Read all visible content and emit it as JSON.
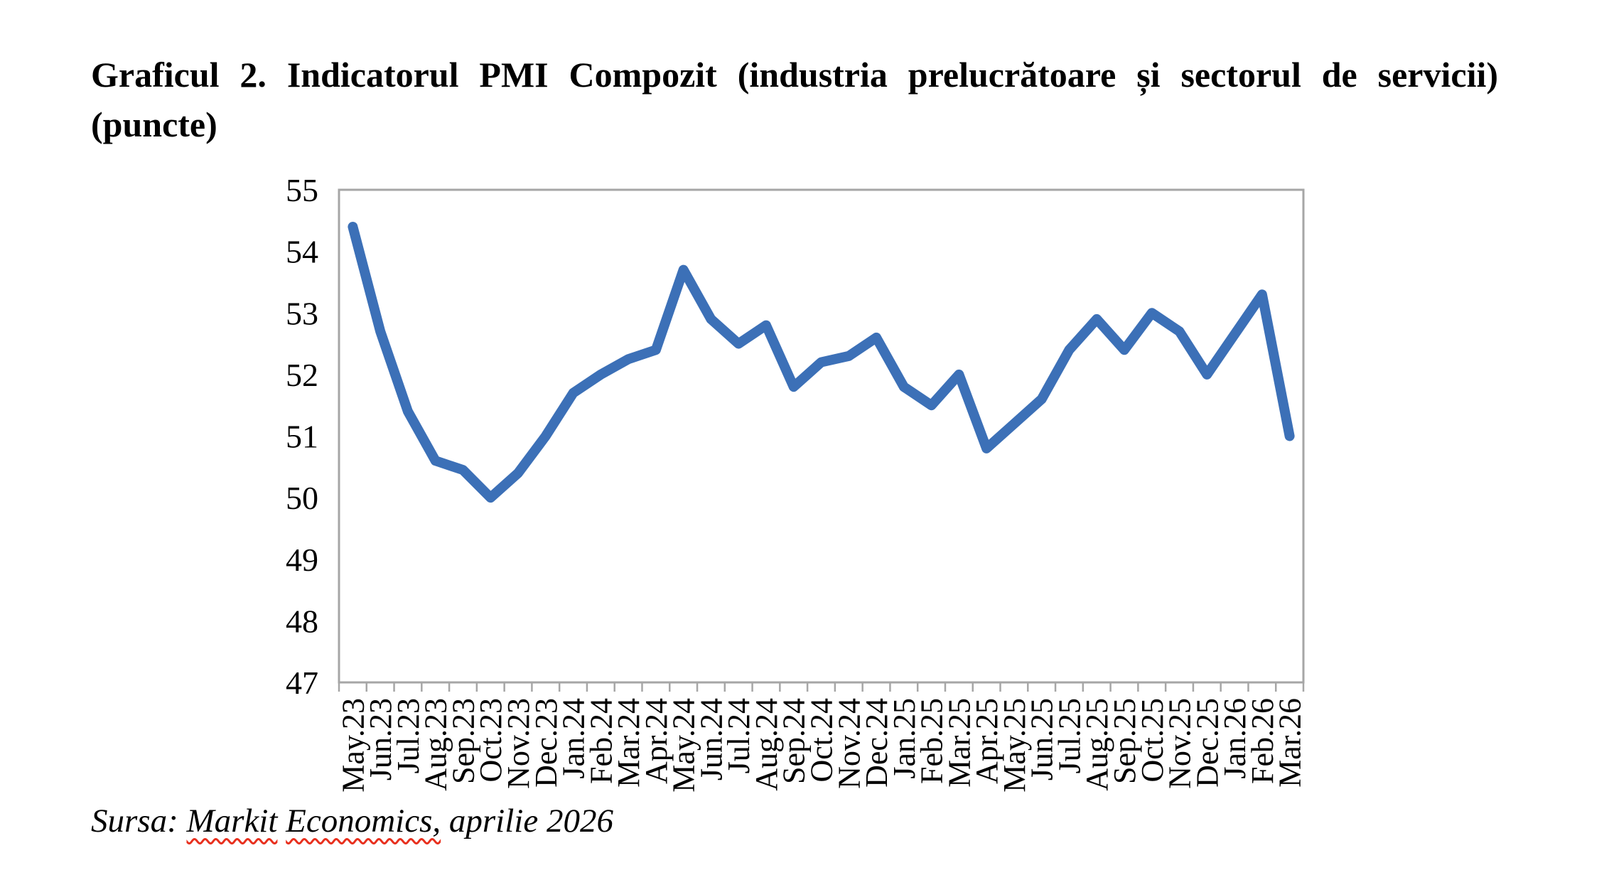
{
  "page": {
    "title_line1": "Graficul 2. Indicatorul PMI Compozit (industria prelucrătoare și sectorul de servicii)",
    "title_line2": "(puncte)"
  },
  "source": {
    "prefix": "Sursa: ",
    "underlined_word1": "Markit",
    "underlined_word2": "Economics,",
    "suffix": " aprilie 2026",
    "squiggle_color": "#e8301e"
  },
  "chart_data": {
    "type": "line",
    "title": "Graficul 2. Indicatorul PMI Compozit (industria prelucrătoare și sectorul de servicii) (puncte)",
    "categories": [
      "May.23",
      "Jun.23",
      "Jul.23",
      "Aug.23",
      "Sep.23",
      "Oct.23",
      "Nov.23",
      "Dec.23",
      "Jan.24",
      "Feb.24",
      "Mar.24",
      "Apr.24",
      "May.24",
      "Jun.24",
      "Jul.24",
      "Aug.24",
      "Sep.24",
      "Oct.24",
      "Nov.24",
      "Dec.24",
      "Jan.25",
      "Feb.25",
      "Mar.25",
      "Apr.25",
      "May.25",
      "Jun.25",
      "Jul.25",
      "Aug.25",
      "Sep.25",
      "Oct.25",
      "Nov.25",
      "Dec.25",
      "Jan.26",
      "Feb.26",
      "Mar.26"
    ],
    "series": [
      {
        "name": "PMI Compozit",
        "values": [
          54.4,
          52.7,
          51.4,
          50.6,
          50.45,
          50.0,
          50.4,
          51.0,
          51.7,
          52.0,
          52.25,
          52.4,
          53.7,
          52.9,
          52.5,
          52.8,
          51.8,
          52.2,
          52.3,
          52.6,
          51.8,
          51.5,
          52.0,
          50.8,
          51.2,
          51.6,
          52.4,
          52.9,
          52.4,
          53.0,
          52.7,
          52.0,
          52.65,
          53.3,
          51.0
        ]
      }
    ],
    "xlabel": "",
    "ylabel": "",
    "ylim": [
      47,
      55
    ],
    "yticks": [
      47,
      48,
      49,
      50,
      51,
      52,
      53,
      54,
      55
    ],
    "grid": false,
    "legend_position": "none",
    "line_color": "#3C70B7",
    "axis_color": "#A6A6A6",
    "label_color": "#000000"
  }
}
